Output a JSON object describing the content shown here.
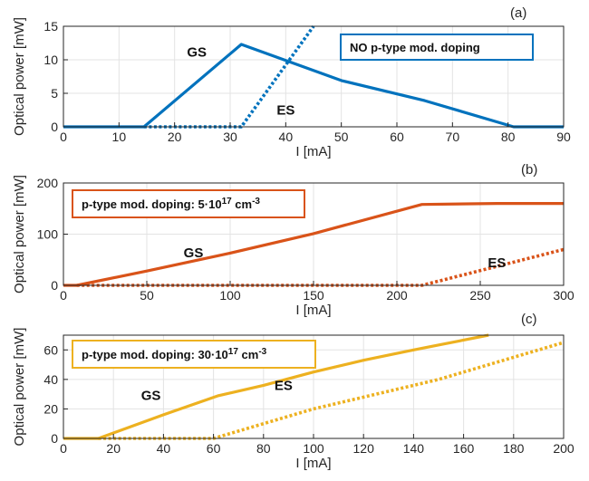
{
  "chart_data": [
    {
      "type": "line",
      "panel_tag": "(a)",
      "xlabel": "I [mA]",
      "ylabel": "Optical power [mW]",
      "xlim": [
        0,
        90
      ],
      "ylim": [
        0,
        15
      ],
      "xticks": [
        0,
        10,
        20,
        30,
        40,
        50,
        60,
        70,
        80,
        90
      ],
      "yticks": [
        0,
        5,
        10,
        15
      ],
      "grid": true,
      "color": "#0072BD",
      "box": {
        "text": "NO p-type mod. doping",
        "sup": "",
        "tail": ""
      },
      "series": [
        {
          "name": "GS",
          "style": "solid",
          "points": [
            [
              0,
              0
            ],
            [
              14.5,
              0
            ],
            [
              32,
              12.3
            ],
            [
              50,
              6.9
            ],
            [
              65,
              3.9
            ],
            [
              81,
              0
            ],
            [
              90,
              0
            ]
          ]
        },
        {
          "name": "ES",
          "style": "dotted",
          "points": [
            [
              14.5,
              0
            ],
            [
              32,
              0
            ],
            [
              45,
              15
            ]
          ]
        }
      ],
      "annotations": [
        {
          "text": "GS",
          "x": 24,
          "y": 10.5
        },
        {
          "text": "ES",
          "x": 40,
          "y": 1.8
        }
      ]
    },
    {
      "type": "line",
      "panel_tag": "(b)",
      "xlabel": "I [mA]",
      "ylabel": "Optical power [mW]",
      "xlim": [
        0,
        300
      ],
      "ylim": [
        0,
        200
      ],
      "xticks": [
        0,
        50,
        100,
        150,
        200,
        250,
        300
      ],
      "yticks": [
        0,
        100,
        200
      ],
      "grid": true,
      "color": "#D95319",
      "box": {
        "text": "p-type mod. doping: 5·10",
        "sup": "17",
        "tail": " cm",
        "sup2": "-3"
      },
      "series": [
        {
          "name": "GS",
          "style": "solid",
          "points": [
            [
              0,
              0
            ],
            [
              8,
              0
            ],
            [
              50,
              28
            ],
            [
              100,
              63
            ],
            [
              150,
              101
            ],
            [
              215,
              158
            ],
            [
              260,
              160
            ],
            [
              300,
              160
            ]
          ]
        },
        {
          "name": "ES",
          "style": "dotted",
          "points": [
            [
              8,
              0
            ],
            [
              215,
              0
            ],
            [
              300,
              70
            ]
          ]
        }
      ],
      "annotations": [
        {
          "text": "GS",
          "x": 78,
          "y": 55
        },
        {
          "text": "ES",
          "x": 260,
          "y": 35
        }
      ]
    },
    {
      "type": "line",
      "panel_tag": "(c)",
      "xlabel": "I [mA]",
      "ylabel": "Optical power [mW]",
      "xlim": [
        0,
        200
      ],
      "ylim": [
        0,
        70
      ],
      "xticks": [
        0,
        20,
        40,
        60,
        80,
        100,
        120,
        140,
        160,
        180,
        200
      ],
      "yticks": [
        0,
        20,
        40,
        60
      ],
      "grid": true,
      "color": "#EDB120",
      "box": {
        "text": "p-type mod. doping: 30·10",
        "sup": "17",
        "tail": " cm",
        "sup2": "-3"
      },
      "series": [
        {
          "name": "GS",
          "style": "solid",
          "points": [
            [
              0,
              0
            ],
            [
              14,
              0
            ],
            [
              40,
              16
            ],
            [
              62,
              29
            ],
            [
              80,
              36
            ],
            [
              100,
              45
            ],
            [
              120,
              53
            ],
            [
              140,
              60
            ],
            [
              170,
              70
            ]
          ]
        },
        {
          "name": "ES",
          "style": "dotted",
          "points": [
            [
              14,
              0
            ],
            [
              60,
              0
            ],
            [
              100,
              20
            ],
            [
              150,
              40
            ],
            [
              200,
              65
            ]
          ]
        }
      ],
      "annotations": [
        {
          "text": "GS",
          "x": 35,
          "y": 26
        },
        {
          "text": "ES",
          "x": 88,
          "y": 33
        }
      ]
    }
  ]
}
